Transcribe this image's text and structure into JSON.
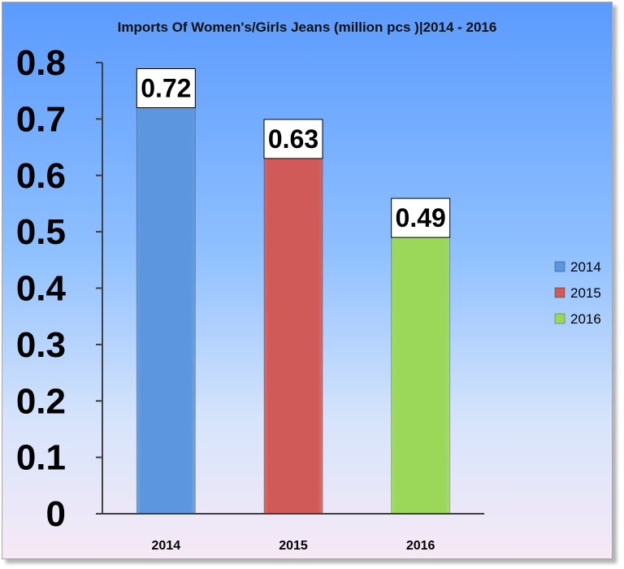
{
  "chart_data": {
    "type": "bar",
    "title": "Imports Of Women's/Girls Jeans (million pcs )|2014 - 2016",
    "xlabel": "",
    "ylabel": "",
    "categories": [
      "2014",
      "2015",
      "2016"
    ],
    "series": [
      {
        "name": "2014",
        "category": "2014",
        "value": 0.72,
        "label": "0.72",
        "color": "#5b96de"
      },
      {
        "name": "2015",
        "category": "2015",
        "value": 0.63,
        "label": "0.63",
        "color": "#d05a57"
      },
      {
        "name": "2016",
        "category": "2016",
        "value": 0.49,
        "label": "0.49",
        "color": "#9bd85a"
      }
    ],
    "ylim": [
      0,
      0.8
    ],
    "yticks": [
      "0",
      "0.1",
      "0.2",
      "0.3",
      "0.4",
      "0.5",
      "0.6",
      "0.7",
      "0.8"
    ],
    "ytick_values": [
      0,
      0.1,
      0.2,
      0.3,
      0.4,
      0.5,
      0.6,
      0.7,
      0.8
    ],
    "grid": false,
    "legend_position": "right"
  }
}
